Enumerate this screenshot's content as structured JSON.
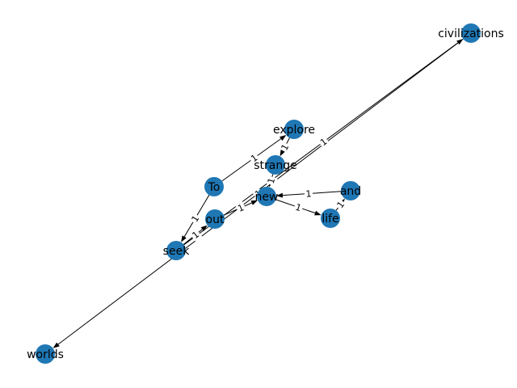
{
  "graph": {
    "nodes": [
      {
        "id": "To",
        "label": "To"
      },
      {
        "id": "explore",
        "label": "explore"
      },
      {
        "id": "strange",
        "label": "strange"
      },
      {
        "id": "new",
        "label": "new"
      },
      {
        "id": "and",
        "label": "and"
      },
      {
        "id": "life",
        "label": "life"
      },
      {
        "id": "out",
        "label": "out"
      },
      {
        "id": "seek",
        "label": "seek"
      },
      {
        "id": "civilizations",
        "label": "civilizations"
      },
      {
        "id": "worlds",
        "label": "worlds"
      }
    ],
    "edges": [
      {
        "source": "To",
        "target": "explore",
        "label": "1"
      },
      {
        "source": "To",
        "target": "seek",
        "label": "1"
      },
      {
        "source": "seek",
        "target": "out",
        "label": "1"
      },
      {
        "source": "out",
        "target": "new",
        "label": "1"
      },
      {
        "source": "strange",
        "target": "new",
        "label": "1"
      },
      {
        "source": "explore",
        "target": "strange",
        "label": "1"
      },
      {
        "source": "and",
        "target": "new",
        "label": "1"
      },
      {
        "source": "new",
        "target": "life",
        "label": "1"
      },
      {
        "source": "life",
        "target": "and",
        "label": "1"
      },
      {
        "source": "seek",
        "target": "civilizations",
        "label": "1"
      },
      {
        "source": "civilizations",
        "target": "worlds",
        "label": "1"
      }
    ],
    "colors": {
      "node": "#1f77b4",
      "edge": "#000000"
    }
  }
}
